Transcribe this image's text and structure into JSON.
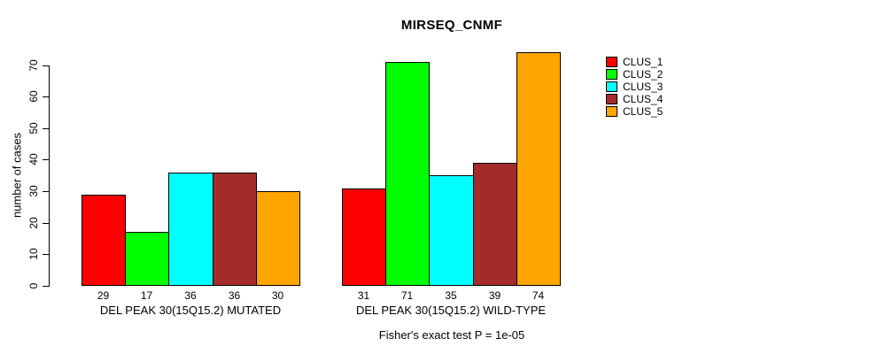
{
  "figure": {
    "background": "#ffffff"
  },
  "chart_data": {
    "type": "bar",
    "title": "MIRSEQ_CNMF",
    "ylabel": "number of cases",
    "xlabel": "",
    "yticks": [
      0,
      10,
      20,
      30,
      40,
      50,
      60,
      70
    ],
    "ylim": [
      0,
      74
    ],
    "grid": false,
    "legend_position": "right",
    "legend": [
      "CLUS_1",
      "CLUS_2",
      "CLUS_3",
      "CLUS_4",
      "CLUS_5"
    ],
    "series_colors": [
      "#ff0000",
      "#00ff00",
      "#00ffff",
      "#a52a2a",
      "#ffa500"
    ],
    "bar_border_color": "#000000",
    "groups": [
      {
        "label": "DEL PEAK 30(15Q15.2) MUTATED",
        "values": [
          29,
          17,
          36,
          36,
          30
        ]
      },
      {
        "label": "DEL PEAK 30(15Q15.2) WILD-TYPE",
        "values": [
          31,
          71,
          35,
          39,
          74
        ]
      }
    ],
    "annotation": "Fisher's exact test P = 1e-05"
  }
}
